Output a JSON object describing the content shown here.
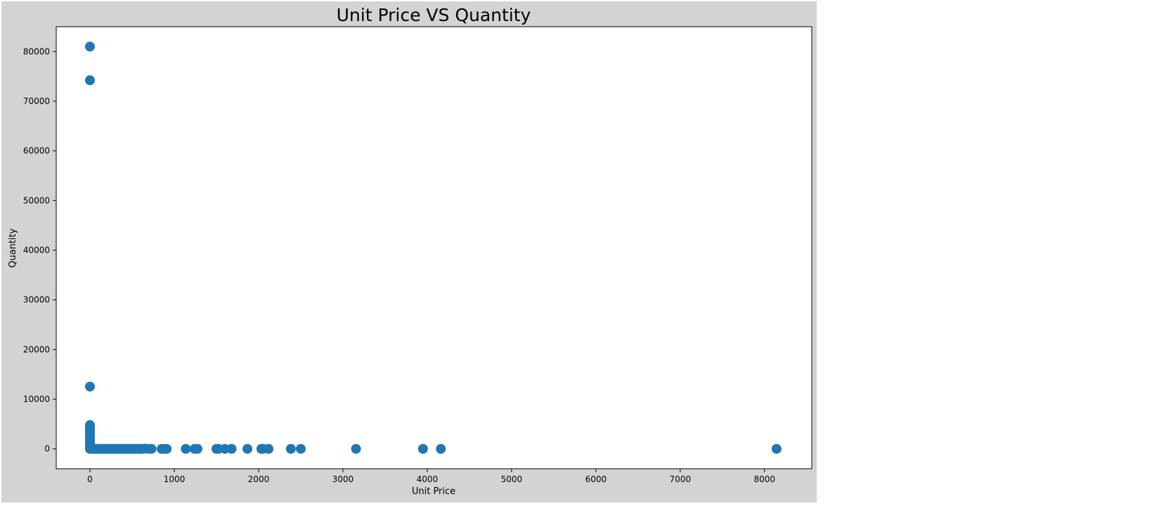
{
  "chart_data": {
    "type": "scatter",
    "title": "Unit Price VS Quantity",
    "xlabel": "Unit Price",
    "ylabel": "Quantity",
    "xlim": [
      -400,
      8560
    ],
    "ylim": [
      -4000,
      85000
    ],
    "xticks": [
      0,
      1000,
      2000,
      3000,
      4000,
      5000,
      6000,
      7000,
      8000
    ],
    "yticks": [
      0,
      10000,
      20000,
      30000,
      40000,
      50000,
      60000,
      70000,
      80000
    ],
    "grid": false,
    "colors": {
      "marker": "#1f77b4",
      "figure_bg": "#d3d3d3",
      "axes_bg": "#ffffff"
    },
    "points": [
      {
        "x": 0,
        "y": 80995
      },
      {
        "x": 0,
        "y": 74215
      },
      {
        "x": 0,
        "y": 12540
      },
      {
        "x": 0,
        "y": 4800
      },
      {
        "x": 0,
        "y": 4300
      },
      {
        "x": 0,
        "y": 3800
      },
      {
        "x": 0,
        "y": 3200
      },
      {
        "x": 0,
        "y": 2600
      },
      {
        "x": 0,
        "y": 2000
      },
      {
        "x": 0,
        "y": 1500
      },
      {
        "x": 0,
        "y": 1000
      },
      {
        "x": 0,
        "y": 500
      },
      {
        "x": 0,
        "y": 0
      },
      {
        "x": 20,
        "y": 0
      },
      {
        "x": 40,
        "y": 0
      },
      {
        "x": 60,
        "y": 0
      },
      {
        "x": 80,
        "y": 0
      },
      {
        "x": 100,
        "y": 0
      },
      {
        "x": 120,
        "y": 0
      },
      {
        "x": 140,
        "y": 0
      },
      {
        "x": 160,
        "y": 0
      },
      {
        "x": 180,
        "y": 0
      },
      {
        "x": 200,
        "y": 0
      },
      {
        "x": 220,
        "y": 0
      },
      {
        "x": 240,
        "y": 0
      },
      {
        "x": 260,
        "y": 0
      },
      {
        "x": 280,
        "y": 0
      },
      {
        "x": 300,
        "y": 0
      },
      {
        "x": 320,
        "y": 0
      },
      {
        "x": 340,
        "y": 0
      },
      {
        "x": 360,
        "y": 0
      },
      {
        "x": 380,
        "y": 0
      },
      {
        "x": 400,
        "y": 0
      },
      {
        "x": 420,
        "y": 0
      },
      {
        "x": 440,
        "y": 0
      },
      {
        "x": 460,
        "y": 0
      },
      {
        "x": 480,
        "y": 0
      },
      {
        "x": 500,
        "y": 0
      },
      {
        "x": 520,
        "y": 0
      },
      {
        "x": 540,
        "y": 0
      },
      {
        "x": 560,
        "y": 0
      },
      {
        "x": 580,
        "y": 0
      },
      {
        "x": 600,
        "y": 0
      },
      {
        "x": 620,
        "y": 0
      },
      {
        "x": 650,
        "y": 50
      },
      {
        "x": 700,
        "y": 0
      },
      {
        "x": 730,
        "y": 0
      },
      {
        "x": 850,
        "y": 0
      },
      {
        "x": 880,
        "y": 0
      },
      {
        "x": 910,
        "y": 0
      },
      {
        "x": 1136,
        "y": 0
      },
      {
        "x": 1240,
        "y": 0
      },
      {
        "x": 1275,
        "y": 0
      },
      {
        "x": 1500,
        "y": 0
      },
      {
        "x": 1525,
        "y": 0
      },
      {
        "x": 1600,
        "y": 0
      },
      {
        "x": 1680,
        "y": 0
      },
      {
        "x": 1867,
        "y": 0
      },
      {
        "x": 2033,
        "y": 0
      },
      {
        "x": 2053,
        "y": 0
      },
      {
        "x": 2118,
        "y": 0
      },
      {
        "x": 2382,
        "y": 0
      },
      {
        "x": 2500,
        "y": 0
      },
      {
        "x": 3155,
        "y": 0
      },
      {
        "x": 3949,
        "y": 0
      },
      {
        "x": 4161,
        "y": 0
      },
      {
        "x": 8142,
        "y": 0
      }
    ]
  }
}
